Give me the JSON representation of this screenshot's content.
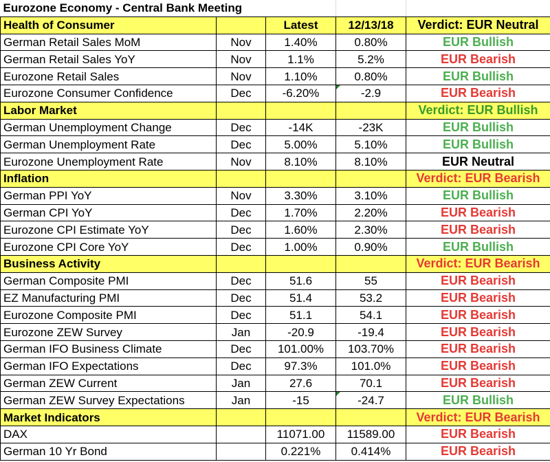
{
  "title": "Eurozone Economy - Central Bank Meeting",
  "colors": {
    "section_bg": "#ffff66",
    "bullish": "#4caf50",
    "bearish": "#e53935"
  },
  "sections": [
    {
      "name": "Health of Consumer",
      "latest_header": "Latest",
      "prior_header": "12/13/18",
      "verdict": "Verdict: EUR Neutral",
      "verdict_type": "neutral",
      "rows": [
        {
          "indicator": "German Retail Sales MoM",
          "period": "Nov",
          "latest": "1.40%",
          "prior": "0.80%",
          "signal": "EUR Bullish",
          "type": "bull"
        },
        {
          "indicator": "German Retail Sales YoY",
          "period": "Nov",
          "latest": "1.1%",
          "prior": "5.2%",
          "signal": "EUR Bearish",
          "type": "bear"
        },
        {
          "indicator": "Eurozone Retail Sales",
          "period": "Nov",
          "latest": "1.10%",
          "prior": "0.80%",
          "signal": "EUR Bullish",
          "type": "bull"
        },
        {
          "indicator": "Eurozone Consumer Confidence",
          "period": "Dec",
          "latest": "-6.20%",
          "prior": "-2.9",
          "signal": "EUR Bearish",
          "type": "bear",
          "prior_marker": true
        }
      ]
    },
    {
      "name": "Labor Market",
      "latest_header": "",
      "prior_header": "",
      "verdict": "Verdict: EUR Bullish",
      "verdict_type": "bull",
      "rows": [
        {
          "indicator": "German Unemployment Change",
          "period": "Dec",
          "latest": "-14K",
          "prior": "-23K",
          "signal": "EUR Bullish",
          "type": "bull"
        },
        {
          "indicator": "German Unemployment Rate",
          "period": "Dec",
          "latest": "5.00%",
          "prior": "5.10%",
          "signal": "EUR Bullish",
          "type": "bull"
        },
        {
          "indicator": "Eurozone Unemployment Rate",
          "period": "Nov",
          "latest": "8.10%",
          "prior": "8.10%",
          "signal": "EUR Neutral",
          "type": "neutral"
        }
      ]
    },
    {
      "name": "Inflation",
      "latest_header": "",
      "prior_header": "",
      "verdict": "Verdict: EUR Bearish",
      "verdict_type": "bear",
      "rows": [
        {
          "indicator": "German PPI YoY",
          "period": "Nov",
          "latest": "3.30%",
          "prior": "3.10%",
          "signal": "EUR Bullish",
          "type": "bull"
        },
        {
          "indicator": "German CPI YoY",
          "period": "Dec",
          "latest": "1.70%",
          "prior": "2.20%",
          "signal": "EUR Bearish",
          "type": "bear"
        },
        {
          "indicator": "Eurozone CPI Estimate  YoY",
          "period": "Dec",
          "latest": "1.60%",
          "prior": "2.30%",
          "signal": "EUR Bearish",
          "type": "bear"
        },
        {
          "indicator": "Eurozone CPI Core YoY",
          "period": "Dec",
          "latest": "1.00%",
          "prior": "0.90%",
          "signal": "EUR Bullish",
          "type": "bull"
        }
      ]
    },
    {
      "name": "Business Activity",
      "latest_header": "",
      "prior_header": "",
      "verdict": "Verdict: EUR Bearish",
      "verdict_type": "bear",
      "rows": [
        {
          "indicator": "German Composite PMI",
          "period": "Dec",
          "latest": "51.6",
          "prior": "55",
          "signal": "EUR Bearish",
          "type": "bear"
        },
        {
          "indicator": "EZ Manufacturing PMI",
          "period": "Dec",
          "latest": "51.4",
          "prior": "53.2",
          "signal": "EUR Bearish",
          "type": "bear"
        },
        {
          "indicator": "Eurozone Composite PMI",
          "period": "Dec",
          "latest": "51.1",
          "prior": "54.1",
          "signal": "EUR Bearish",
          "type": "bear"
        },
        {
          "indicator": "Eurozone ZEW Survey",
          "period": "Jan",
          "latest": "-20.9",
          "prior": "-19.4",
          "signal": "EUR Bearish",
          "type": "bear"
        },
        {
          "indicator": "German IFO Business Climate",
          "period": "Dec",
          "latest": "101.00%",
          "prior": "103.70%",
          "signal": "EUR Bearish",
          "type": "bear"
        },
        {
          "indicator": "German IFO Expectations",
          "period": "Dec",
          "latest": "97.3%",
          "prior": "101.0%",
          "signal": "EUR Bearish",
          "type": "bear"
        },
        {
          "indicator": "German ZEW Current",
          "period": "Jan",
          "latest": "27.6",
          "prior": "70.1",
          "signal": "EUR Bearish",
          "type": "bear"
        },
        {
          "indicator": "German ZEW Survey Expectations",
          "period": "Jan",
          "latest": "-15",
          "prior": "-24.7",
          "signal": "EUR Bullish",
          "type": "bull",
          "prior_marker": true
        }
      ]
    },
    {
      "name": "Market Indicators",
      "latest_header": "",
      "prior_header": "",
      "verdict": "Verdict: EUR Bearish",
      "verdict_type": "bear",
      "rows": [
        {
          "indicator": "DAX",
          "period": "",
          "latest": "11071.00",
          "prior": "11589.00",
          "signal": "EUR Bearish",
          "type": "bear"
        },
        {
          "indicator": "German 10 Yr Bond",
          "period": "",
          "latest": "0.221%",
          "prior": "0.414%",
          "signal": "EUR Bearish",
          "type": "bear"
        }
      ]
    }
  ]
}
